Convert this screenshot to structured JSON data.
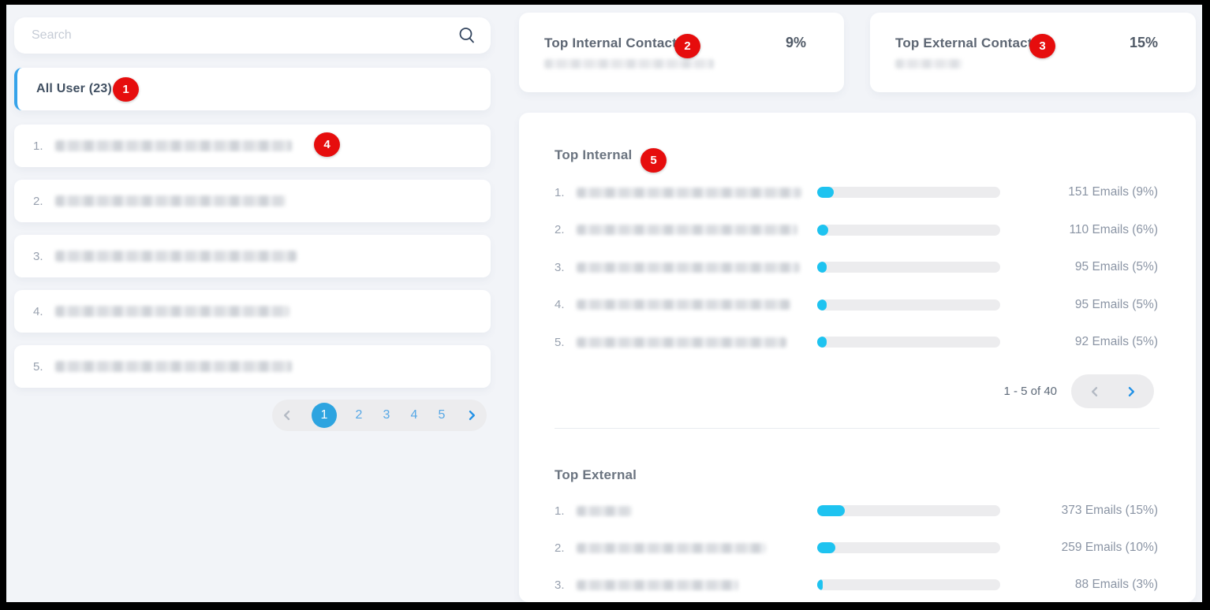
{
  "colors": {
    "surface": "#f2f4f8",
    "accent_blue": "#2da4e0",
    "bar_fill": "#1ec3f0",
    "badge_red": "#e60d0d"
  },
  "sidebar": {
    "search": {
      "placeholder": "Search",
      "icon": "search-icon"
    },
    "filter_tab": {
      "label": "All User (23)"
    },
    "users": [
      {
        "rank": "1.",
        "redact_w": 300
      },
      {
        "rank": "2.",
        "redact_w": 292
      },
      {
        "rank": "3.",
        "redact_w": 306
      },
      {
        "rank": "4.",
        "redact_w": 297
      },
      {
        "rank": "5.",
        "redact_w": 300
      }
    ],
    "pagination": {
      "pages": [
        "1",
        "2",
        "3",
        "4",
        "5"
      ],
      "active_page": "1"
    }
  },
  "summary_cards": {
    "internal": {
      "title": "Top Internal Contacts",
      "value": "9%",
      "redact_w": 215
    },
    "external": {
      "title": "Top External Contacts",
      "value": "15%",
      "redact_w": 85
    }
  },
  "main": {
    "internal": {
      "title": "Top Internal",
      "range_label": "1 - 5 of 40",
      "rows": [
        {
          "rank": "1.",
          "redact_w": 285,
          "emails": 151,
          "pct": 9,
          "value_label": "151 Emails (9%)"
        },
        {
          "rank": "2.",
          "redact_w": 280,
          "emails": 110,
          "pct": 6,
          "value_label": "110 Emails (6%)"
        },
        {
          "rank": "3.",
          "redact_w": 283,
          "emails": 95,
          "pct": 5,
          "value_label": "95 Emails (5%)"
        },
        {
          "rank": "4.",
          "redact_w": 271,
          "emails": 95,
          "pct": 5,
          "value_label": "95 Emails (5%)"
        },
        {
          "rank": "5.",
          "redact_w": 266,
          "emails": 92,
          "pct": 5,
          "value_label": "92 Emails (5%)"
        }
      ]
    },
    "external": {
      "title": "Top External",
      "rows": [
        {
          "rank": "1.",
          "redact_w": 70,
          "emails": 373,
          "pct": 15,
          "value_label": "373 Emails (15%)"
        },
        {
          "rank": "2.",
          "redact_w": 240,
          "emails": 259,
          "pct": 10,
          "value_label": "259 Emails (10%)"
        },
        {
          "rank": "3.",
          "redact_w": 205,
          "emails": 88,
          "pct": 3,
          "value_label": "88 Emails (3%)"
        }
      ]
    }
  },
  "annotations": [
    {
      "label": "1"
    },
    {
      "label": "2"
    },
    {
      "label": "3"
    },
    {
      "label": "4"
    },
    {
      "label": "5"
    }
  ]
}
